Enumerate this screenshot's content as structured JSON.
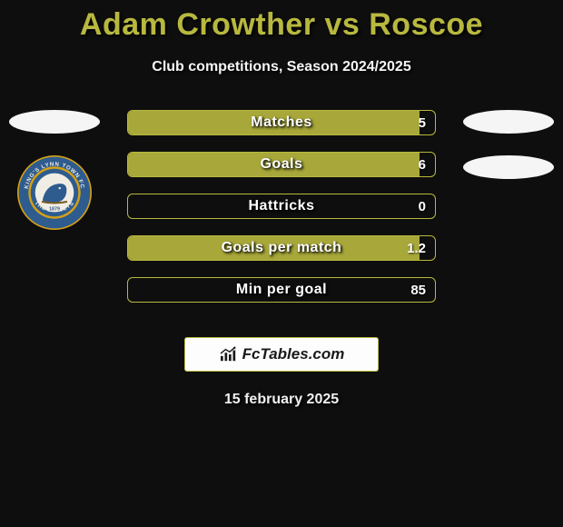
{
  "title": "Adam Crowther vs Roscoe",
  "subtitle": "Club competitions, Season 2024/2025",
  "date": "15 february 2025",
  "colors": {
    "accent": "#b8b83f",
    "bar_fill": "#a8a83a",
    "bar_border": "#b8b83f",
    "background": "#0e0e0e",
    "placeholder": "#f5f5f5"
  },
  "brand": {
    "text": "FcTables.com"
  },
  "club_badge": {
    "outer_ring": "#2e5c8f",
    "inner_ring": "#d4a018",
    "center": "#1c3a5e",
    "text": "KING'S LYNN TOWN FC",
    "year": "1879",
    "bottom": "THE LINNETS"
  },
  "stats": [
    {
      "label": "Matches",
      "value": "5",
      "fill_pct": 95
    },
    {
      "label": "Goals",
      "value": "6",
      "fill_pct": 95
    },
    {
      "label": "Hattricks",
      "value": "0",
      "fill_pct": 0
    },
    {
      "label": "Goals per match",
      "value": "1.2",
      "fill_pct": 95
    },
    {
      "label": "Min per goal",
      "value": "85",
      "fill_pct": 0
    }
  ]
}
